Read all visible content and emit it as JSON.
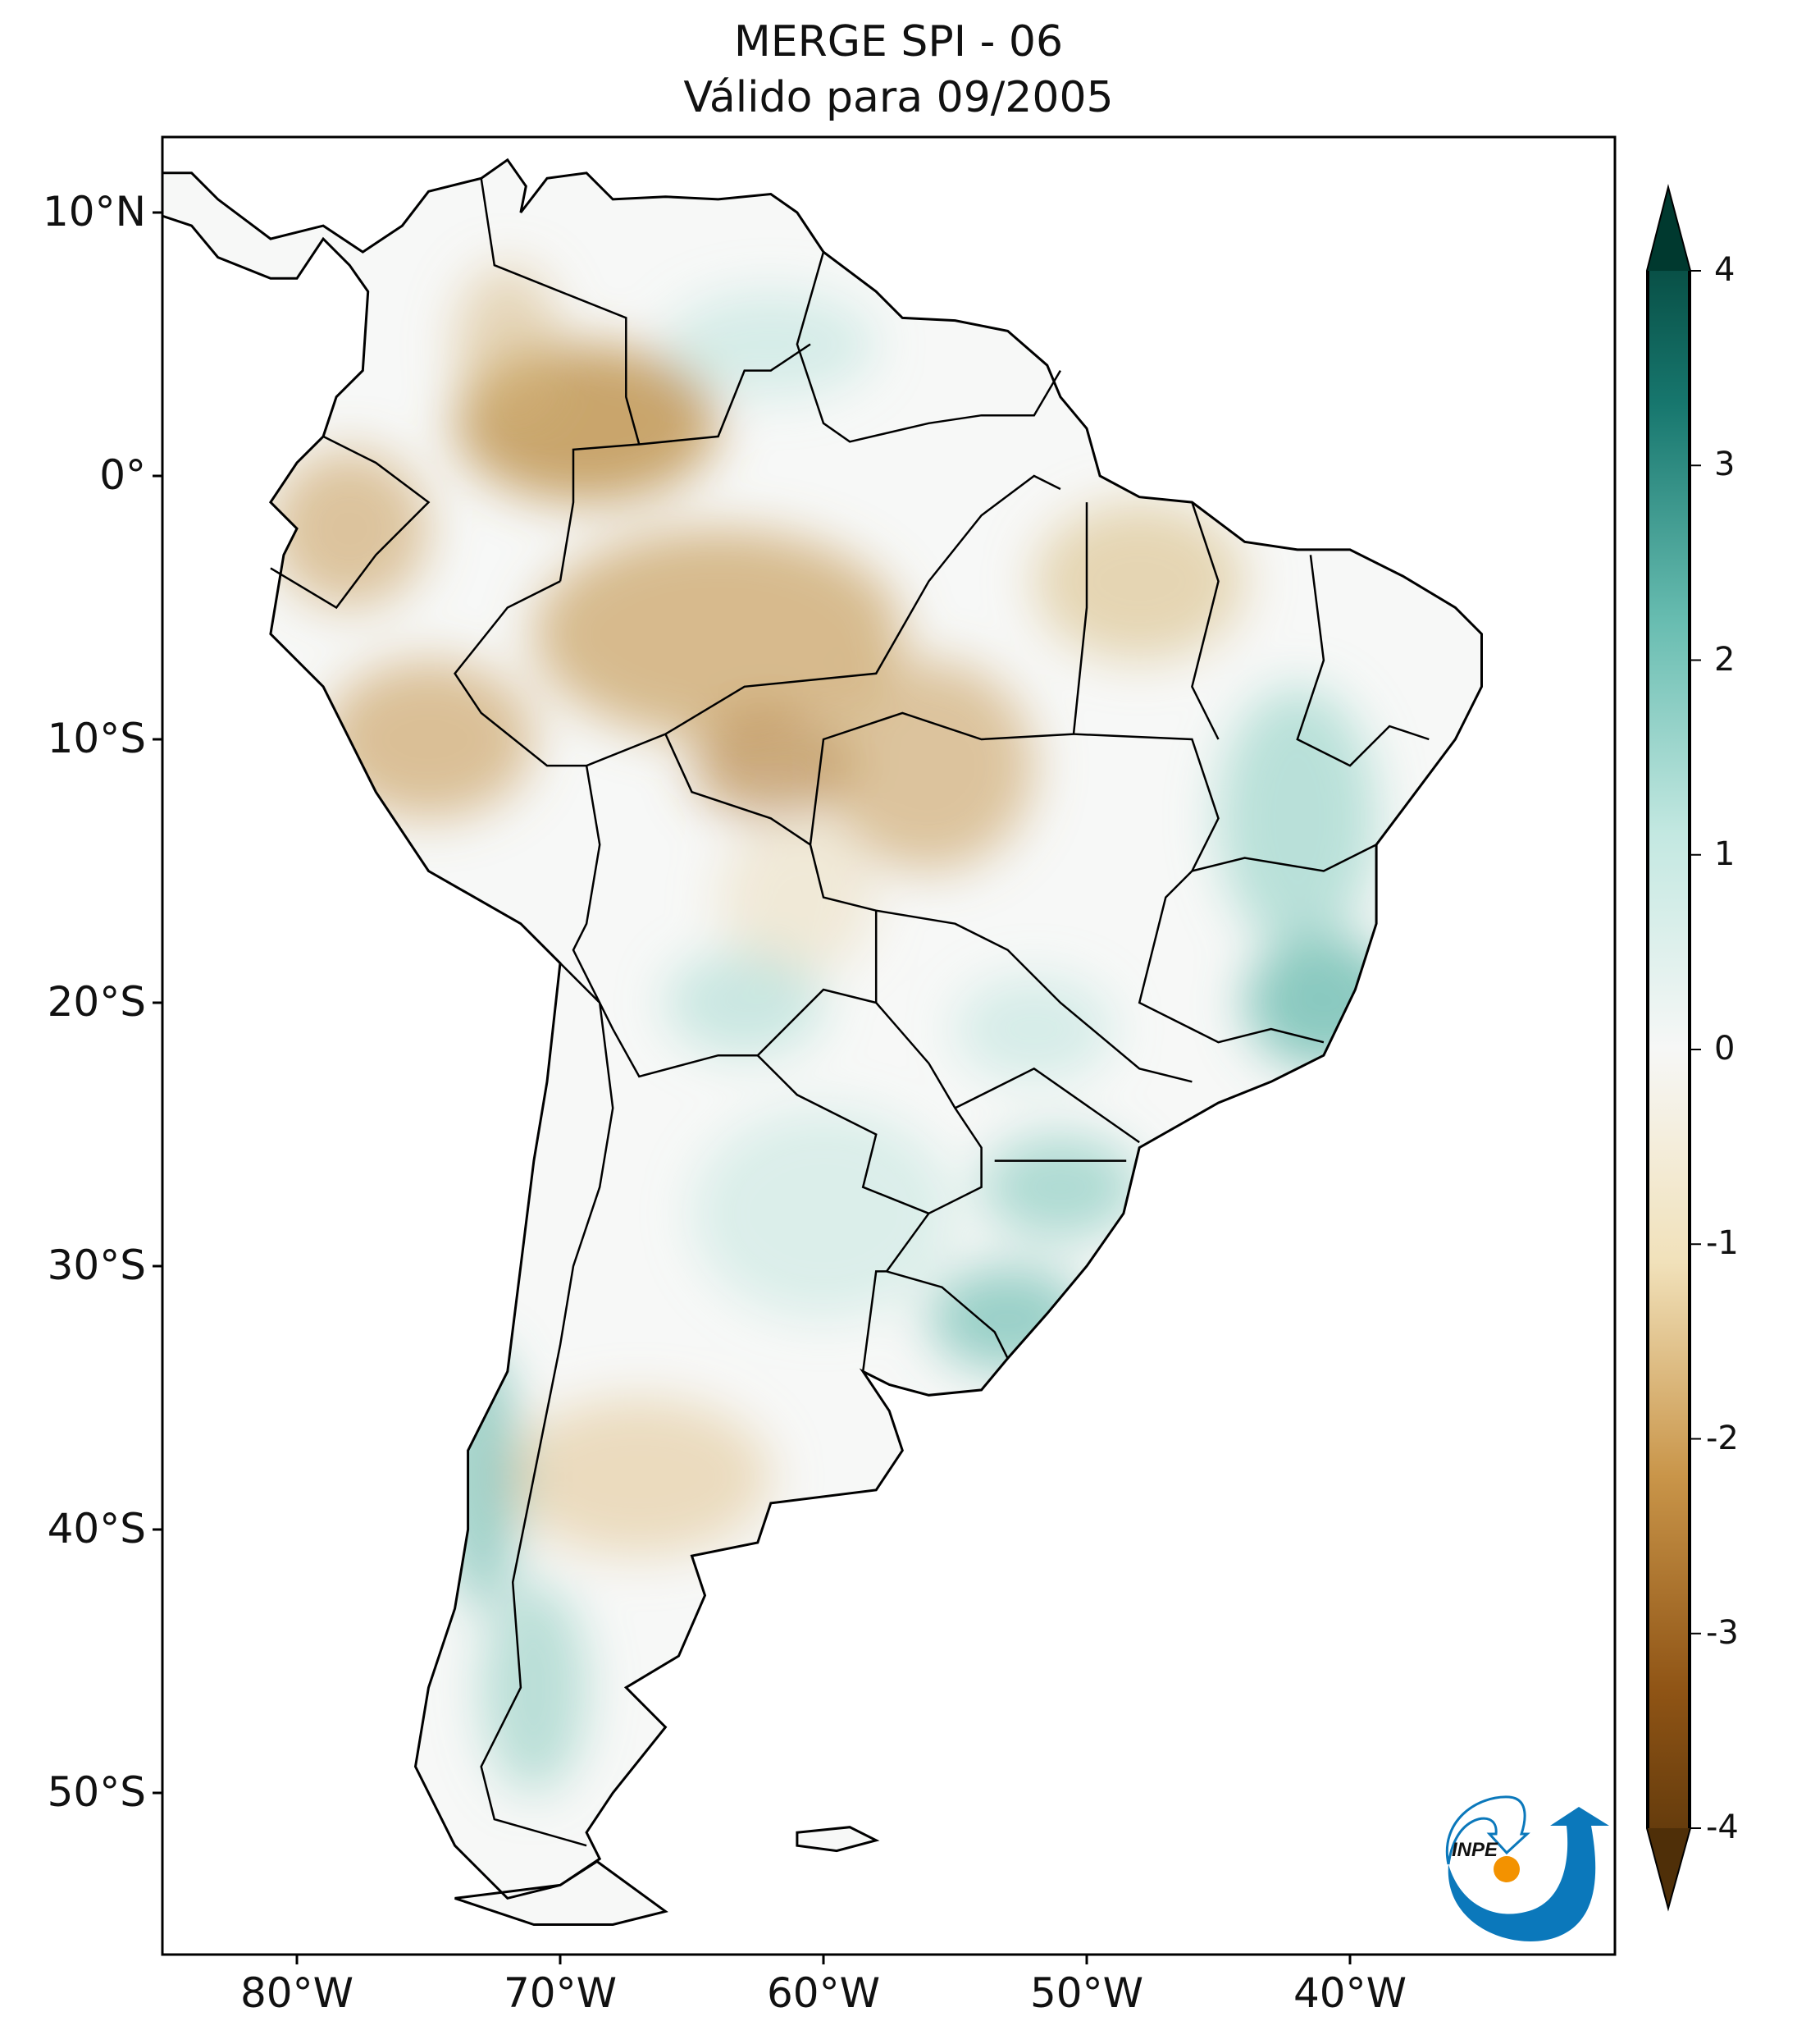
{
  "title": {
    "line1": "MERGE   SPI - 06",
    "line2": "Válido para 09/2005"
  },
  "axes": {
    "lon_ticks": [
      {
        "value": -80,
        "label": "80°W"
      },
      {
        "value": -70,
        "label": "70°W"
      },
      {
        "value": -60,
        "label": "60°W"
      },
      {
        "value": -50,
        "label": "50°W"
      },
      {
        "value": -40,
        "label": "40°W"
      }
    ],
    "lat_ticks": [
      {
        "value": 10,
        "label": "10°N"
      },
      {
        "value": 0,
        "label": "0°"
      },
      {
        "value": -10,
        "label": "10°S"
      },
      {
        "value": -20,
        "label": "20°S"
      },
      {
        "value": -30,
        "label": "30°S"
      },
      {
        "value": -40,
        "label": "40°S"
      },
      {
        "value": -50,
        "label": "50°S"
      }
    ],
    "lon_range": [
      -85.1,
      -29.9
    ],
    "lat_range": [
      -56.1,
      12.9
    ]
  },
  "colorbar": {
    "min": -4,
    "max": 4,
    "extend": "both",
    "ticks": [
      "4",
      "3",
      "2",
      "1",
      "0",
      "-1",
      "-2",
      "-3",
      "-4"
    ],
    "colors": {
      "-4": "#4f2f08",
      "-3": "#8f5415",
      "-2": "#c99549",
      "-1": "#f1e1ba",
      "0": "#f6f7f6",
      "1": "#c3e8e1",
      "2": "#67bcb0",
      "3": "#17776e",
      "4": "#00392f"
    }
  },
  "logo": {
    "text": "INPE",
    "blue": "#0b78bb",
    "orange": "#f39200"
  }
}
